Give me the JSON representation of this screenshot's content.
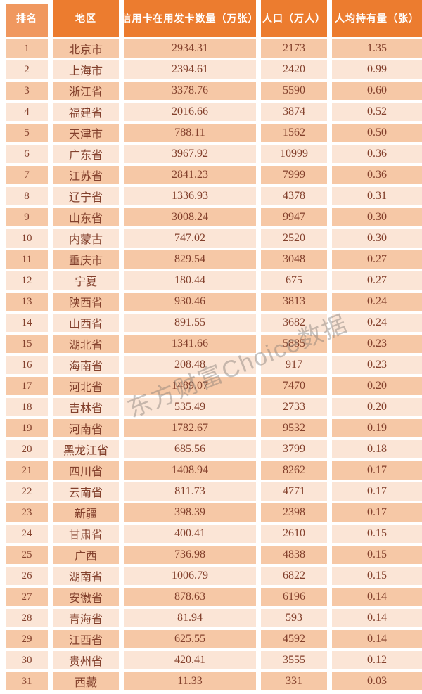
{
  "header": {
    "rank": "排名",
    "region": "地区",
    "cards": "信用卡在用发卡数量（万张）",
    "population": "人口（万人）",
    "per_capita": "人均持有量（张）"
  },
  "watermark": "东方财富Choice数据",
  "colors": {
    "header_bg": "#EC7C2F",
    "rank_header_bg": "#F0985F",
    "row_dark_bg": "#F6C8A6",
    "row_light_bg": "#FBE5D6",
    "body_text": "#83402C",
    "header_text": "#FFFFFF",
    "watermark_text": "#7D7570"
  },
  "chart_data": {
    "type": "table",
    "columns": [
      "排名",
      "地区",
      "信用卡在用发卡数量（万张）",
      "人口（万人）",
      "人均持有量（张）"
    ],
    "rows": [
      [
        "1",
        "北京市",
        "2934.31",
        "2173",
        "1.35"
      ],
      [
        "2",
        "上海市",
        "2394.61",
        "2420",
        "0.99"
      ],
      [
        "3",
        "浙江省",
        "3378.76",
        "5590",
        "0.60"
      ],
      [
        "4",
        "福建省",
        "2016.66",
        "3874",
        "0.52"
      ],
      [
        "5",
        "天津市",
        "788.11",
        "1562",
        "0.50"
      ],
      [
        "6",
        "广东省",
        "3967.92",
        "10999",
        "0.36"
      ],
      [
        "7",
        "江苏省",
        "2841.23",
        "7999",
        "0.36"
      ],
      [
        "8",
        "辽宁省",
        "1336.93",
        "4378",
        "0.31"
      ],
      [
        "9",
        "山东省",
        "3008.24",
        "9947",
        "0.30"
      ],
      [
        "10",
        "内蒙古",
        "747.02",
        "2520",
        "0.30"
      ],
      [
        "11",
        "重庆市",
        "829.54",
        "3048",
        "0.27"
      ],
      [
        "12",
        "宁夏",
        "180.44",
        "675",
        "0.27"
      ],
      [
        "13",
        "陕西省",
        "930.46",
        "3813",
        "0.24"
      ],
      [
        "14",
        "山西省",
        "891.55",
        "3682",
        "0.24"
      ],
      [
        "15",
        "湖北省",
        "1341.66",
        "5885",
        "0.23"
      ],
      [
        "16",
        "海南省",
        "208.48",
        "917",
        "0.23"
      ],
      [
        "17",
        "河北省",
        "1489.07",
        "7470",
        "0.20"
      ],
      [
        "18",
        "吉林省",
        "535.49",
        "2733",
        "0.20"
      ],
      [
        "19",
        "河南省",
        "1782.67",
        "9532",
        "0.19"
      ],
      [
        "20",
        "黑龙江省",
        "685.56",
        "3799",
        "0.18"
      ],
      [
        "21",
        "四川省",
        "1408.94",
        "8262",
        "0.17"
      ],
      [
        "22",
        "云南省",
        "811.73",
        "4771",
        "0.17"
      ],
      [
        "23",
        "新疆",
        "398.39",
        "2398",
        "0.17"
      ],
      [
        "24",
        "甘肃省",
        "400.41",
        "2610",
        "0.15"
      ],
      [
        "25",
        "广西",
        "736.98",
        "4838",
        "0.15"
      ],
      [
        "26",
        "湖南省",
        "1006.79",
        "6822",
        "0.15"
      ],
      [
        "27",
        "安徽省",
        "878.63",
        "6196",
        "0.14"
      ],
      [
        "28",
        "青海省",
        "81.94",
        "593",
        "0.14"
      ],
      [
        "29",
        "江西省",
        "625.55",
        "4592",
        "0.14"
      ],
      [
        "30",
        "贵州省",
        "420.41",
        "3555",
        "0.12"
      ],
      [
        "31",
        "西藏",
        "11.33",
        "331",
        "0.03"
      ]
    ]
  }
}
